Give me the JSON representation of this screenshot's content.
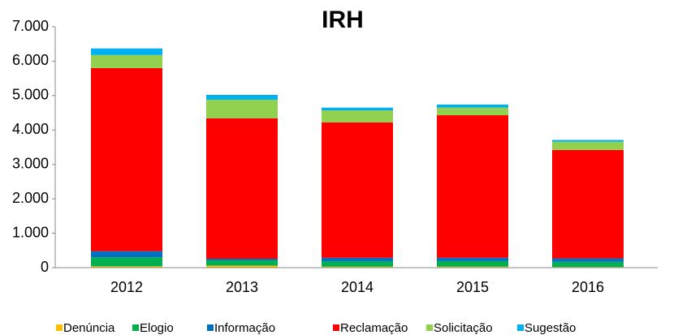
{
  "chart_data": {
    "type": "stacked_bar",
    "title": "IRH",
    "categories": [
      "2012",
      "2013",
      "2014",
      "2015",
      "2016"
    ],
    "series": [
      {
        "name": "Denúncia",
        "color": "#ffc000",
        "values": [
          40,
          60,
          30,
          30,
          20
        ]
      },
      {
        "name": "Elogio",
        "color": "#00b050",
        "values": [
          260,
          150,
          150,
          160,
          150
        ]
      },
      {
        "name": "Informação",
        "color": "#0070c0",
        "values": [
          180,
          50,
          110,
          100,
          100
        ]
      },
      {
        "name": "Reclamação",
        "color": "#ff0000",
        "values": [
          5320,
          4080,
          3930,
          4140,
          3150
        ]
      },
      {
        "name": "Solicitação",
        "color": "#92d050",
        "values": [
          380,
          540,
          350,
          220,
          240
        ]
      },
      {
        "name": "Sugestão",
        "color": "#00b0f0",
        "values": [
          190,
          140,
          80,
          90,
          50
        ]
      }
    ],
    "ylim": [
      0,
      7000
    ],
    "yticks": [
      0,
      {
        "value": 1000,
        "label": "1.000"
      },
      {
        "value": 2000,
        "label": "2.000"
      },
      {
        "value": 3000,
        "label": "3.000"
      },
      {
        "value": 4000,
        "label": "4.000"
      },
      {
        "value": 5000,
        "label": "5.000"
      },
      {
        "value": 6000,
        "label": "6.000"
      },
      {
        "value": 7000,
        "label": "7.000"
      }
    ],
    "legend": "bottom",
    "grid": false
  }
}
